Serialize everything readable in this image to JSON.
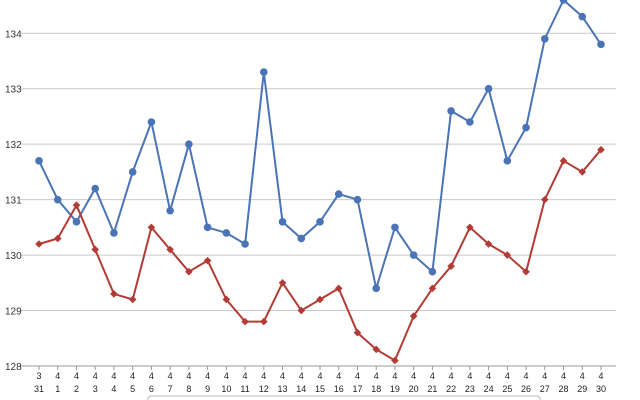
{
  "chart_data": {
    "type": "line",
    "title": "",
    "xlabel": "",
    "ylabel": "",
    "ylim": [
      128,
      134.6
    ],
    "yticks": [
      128,
      129,
      130,
      131,
      132,
      133,
      134
    ],
    "grid": true,
    "legend": "none",
    "categories": [
      [
        "3",
        "31"
      ],
      [
        "4",
        "1"
      ],
      [
        "4",
        "2"
      ],
      [
        "4",
        "3"
      ],
      [
        "4",
        "4"
      ],
      [
        "4",
        "5"
      ],
      [
        "4",
        "6"
      ],
      [
        "4",
        "7"
      ],
      [
        "4",
        "8"
      ],
      [
        "4",
        "9"
      ],
      [
        "4",
        "10"
      ],
      [
        "4",
        "11"
      ],
      [
        "4",
        "12"
      ],
      [
        "4",
        "13"
      ],
      [
        "4",
        "14"
      ],
      [
        "4",
        "15"
      ],
      [
        "4",
        "16"
      ],
      [
        "4",
        "17"
      ],
      [
        "4",
        "18"
      ],
      [
        "4",
        "19"
      ],
      [
        "4",
        "20"
      ],
      [
        "4",
        "21"
      ],
      [
        "4",
        "22"
      ],
      [
        "4",
        "23"
      ],
      [
        "4",
        "24"
      ],
      [
        "4",
        "25"
      ],
      [
        "4",
        "26"
      ],
      [
        "4",
        "27"
      ],
      [
        "4",
        "28"
      ],
      [
        "4",
        "29"
      ],
      [
        "4",
        "30"
      ]
    ],
    "series": [
      {
        "color": "#4a74b6",
        "marker": "circle",
        "values": [
          131.7,
          131.0,
          130.6,
          131.2,
          130.4,
          131.5,
          132.4,
          130.8,
          132.0,
          130.5,
          130.4,
          130.2,
          133.3,
          130.6,
          130.3,
          130.6,
          131.1,
          131.0,
          129.4,
          130.5,
          130.0,
          129.7,
          132.6,
          132.4,
          133.0,
          131.7,
          132.3,
          133.9,
          134.6,
          134.3,
          133.8
        ]
      },
      {
        "color": "#b33b35",
        "marker": "diamond",
        "values": [
          130.2,
          130.3,
          130.9,
          130.1,
          129.3,
          129.2,
          130.5,
          130.1,
          129.7,
          129.9,
          129.2,
          128.8,
          128.8,
          129.5,
          129.0,
          129.2,
          129.4,
          128.6,
          128.3,
          128.1,
          128.9,
          129.4,
          129.8,
          130.5,
          130.2,
          130.0,
          129.7,
          131.0,
          131.7,
          131.5,
          131.9
        ]
      }
    ]
  }
}
